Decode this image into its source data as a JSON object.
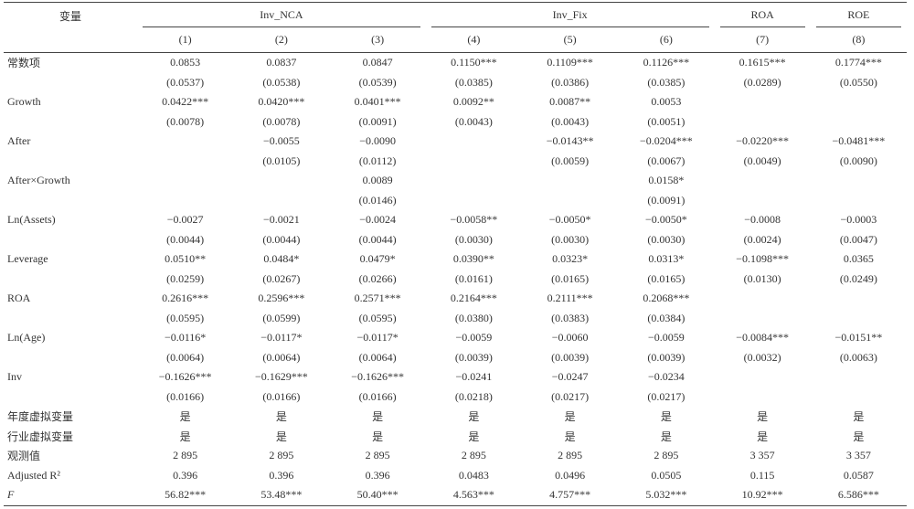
{
  "table": {
    "header": {
      "variable": "变量",
      "groups": [
        "Inv_NCA",
        "Inv_Fix",
        "ROA",
        "ROE"
      ],
      "columns": [
        "(1)",
        "(2)",
        "(3)",
        "(4)",
        "(5)",
        "(6)",
        "(7)",
        "(8)"
      ]
    },
    "rows": [
      {
        "label": "常数项",
        "cells": [
          "0.0853",
          "0.0837",
          "0.0847",
          "0.1150***",
          "0.1109***",
          "0.1126***",
          "0.1615***",
          "0.1774***"
        ]
      },
      {
        "label": null,
        "cells": [
          "(0.0537)",
          "(0.0538)",
          "(0.0539)",
          "(0.0385)",
          "(0.0386)",
          "(0.0385)",
          "(0.0289)",
          "(0.0550)"
        ]
      },
      {
        "label": "Growth",
        "cells": [
          "0.0422***",
          "0.0420***",
          "0.0401***",
          "0.0092**",
          "0.0087**",
          "0.0053",
          null,
          null
        ]
      },
      {
        "label": null,
        "cells": [
          "(0.0078)",
          "(0.0078)",
          "(0.0091)",
          "(0.0043)",
          "(0.0043)",
          "(0.0051)",
          null,
          null
        ]
      },
      {
        "label": "After",
        "cells": [
          null,
          "−0.0055",
          "−0.0090",
          null,
          "−0.0143**",
          "−0.0204***",
          "−0.0220***",
          "−0.0481***"
        ]
      },
      {
        "label": null,
        "cells": [
          null,
          "(0.0105)",
          "(0.0112)",
          null,
          "(0.0059)",
          "(0.0067)",
          "(0.0049)",
          "(0.0090)"
        ]
      },
      {
        "label": "After×Growth",
        "cells": [
          null,
          null,
          "0.0089",
          null,
          null,
          "0.0158*",
          null,
          null
        ]
      },
      {
        "label": null,
        "cells": [
          null,
          null,
          "(0.0146)",
          null,
          null,
          "(0.0091)",
          null,
          null
        ]
      },
      {
        "label": "Ln(Assets)",
        "cells": [
          "−0.0027",
          "−0.0021",
          "−0.0024",
          "−0.0058**",
          "−0.0050*",
          "−0.0050*",
          "−0.0008",
          "−0.0003"
        ]
      },
      {
        "label": null,
        "cells": [
          "(0.0044)",
          "(0.0044)",
          "(0.0044)",
          "(0.0030)",
          "(0.0030)",
          "(0.0030)",
          "(0.0024)",
          "(0.0047)"
        ]
      },
      {
        "label": "Leverage",
        "cells": [
          "0.0510**",
          "0.0484*",
          "0.0479*",
          "0.0390**",
          "0.0323*",
          "0.0313*",
          "−0.1098***",
          "0.0365"
        ]
      },
      {
        "label": null,
        "cells": [
          "(0.0259)",
          "(0.0267)",
          "(0.0266)",
          "(0.0161)",
          "(0.0165)",
          "(0.0165)",
          "(0.0130)",
          "(0.0249)"
        ]
      },
      {
        "label": "ROA",
        "cells": [
          "0.2616***",
          "0.2596***",
          "0.2571***",
          "0.2164***",
          "0.2111***",
          "0.2068***",
          null,
          null
        ]
      },
      {
        "label": null,
        "cells": [
          "(0.0595)",
          "(0.0599)",
          "(0.0595)",
          "(0.0380)",
          "(0.0383)",
          "(0.0384)",
          null,
          null
        ]
      },
      {
        "label": "Ln(Age)",
        "cells": [
          "−0.0116*",
          "−0.0117*",
          "−0.0117*",
          "−0.0059",
          "−0.0060",
          "−0.0059",
          "−0.0084***",
          "−0.0151**"
        ]
      },
      {
        "label": null,
        "cells": [
          "(0.0064)",
          "(0.0064)",
          "(0.0064)",
          "(0.0039)",
          "(0.0039)",
          "(0.0039)",
          "(0.0032)",
          "(0.0063)"
        ]
      },
      {
        "label": "Inv",
        "cells": [
          "−0.1626***",
          "−0.1629***",
          "−0.1626***",
          "−0.0241",
          "−0.0247",
          "−0.0234",
          null,
          null
        ]
      },
      {
        "label": null,
        "cells": [
          "(0.0166)",
          "(0.0166)",
          "(0.0166)",
          "(0.0218)",
          "(0.0217)",
          "(0.0217)",
          null,
          null
        ]
      },
      {
        "label": "年度虚拟变量",
        "cells": [
          "是",
          "是",
          "是",
          "是",
          "是",
          "是",
          "是",
          "是"
        ]
      },
      {
        "label": "行业虚拟变量",
        "cells": [
          "是",
          "是",
          "是",
          "是",
          "是",
          "是",
          "是",
          "是"
        ]
      },
      {
        "label": "观测值",
        "cells": [
          "2 895",
          "2 895",
          "2 895",
          "2 895",
          "2 895",
          "2 895",
          "3 357",
          "3 357"
        ]
      },
      {
        "label": "Adjusted R²",
        "cells": [
          "0.396",
          "0.396",
          "0.396",
          "0.0483",
          "0.0496",
          "0.0505",
          "0.115",
          "0.0587"
        ]
      },
      {
        "label": "F",
        "cells": [
          "56.82***",
          "53.48***",
          "50.40***",
          "4.563***",
          "4.757***",
          "5.032***",
          "10.92***",
          "6.586***"
        ]
      }
    ]
  }
}
